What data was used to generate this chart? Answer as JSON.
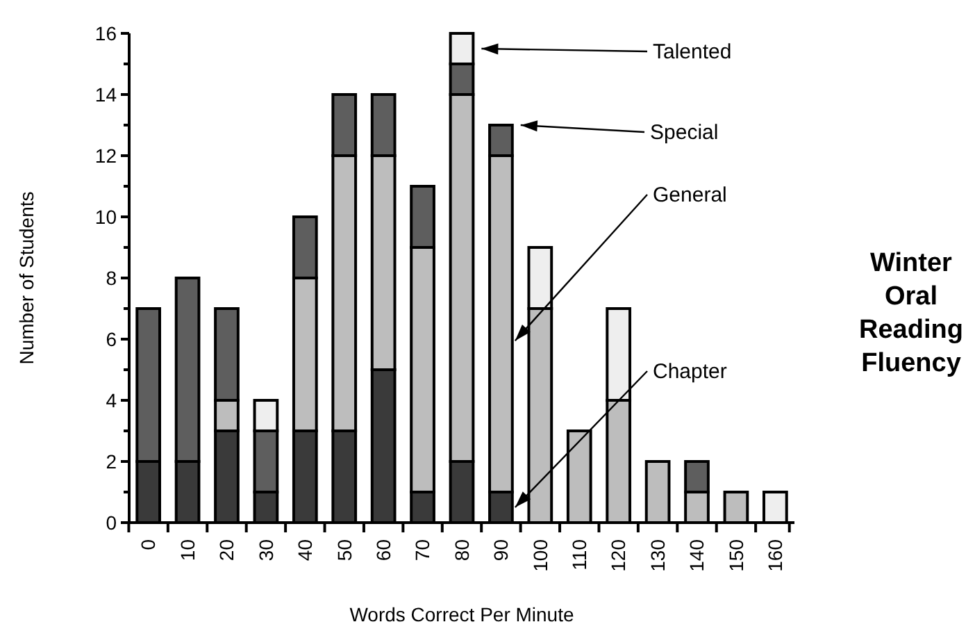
{
  "chart_data": {
    "type": "bar",
    "title": "Winter Oral Reading Fluency",
    "xlabel": "Words Correct Per Minute",
    "ylabel": "Number of Students",
    "stacked": true,
    "categories": [
      "0",
      "10",
      "20",
      "30",
      "40",
      "50",
      "60",
      "70",
      "80",
      "90",
      "100",
      "110",
      "120",
      "130",
      "140",
      "150",
      "160"
    ],
    "series": [
      {
        "name": "Chapter",
        "color": "#3a3a3a",
        "values": [
          2,
          2,
          3,
          1,
          3,
          3,
          5,
          1,
          2,
          1,
          0,
          0,
          0,
          0,
          0,
          0,
          0
        ]
      },
      {
        "name": "General",
        "color": "#bdbdbd",
        "values": [
          0,
          0,
          1,
          0,
          5,
          9,
          7,
          8,
          12,
          11,
          7,
          3,
          4,
          2,
          1,
          1,
          0
        ]
      },
      {
        "name": "Special",
        "color": "#5e5e5e",
        "values": [
          5,
          6,
          3,
          2,
          2,
          2,
          2,
          2,
          1,
          1,
          0,
          0,
          0,
          0,
          1,
          0,
          0
        ]
      },
      {
        "name": "Talented",
        "color": "#eeeeee",
        "values": [
          0,
          0,
          0,
          1,
          0,
          0,
          0,
          0,
          1,
          0,
          2,
          0,
          3,
          0,
          0,
          0,
          1
        ]
      }
    ],
    "ylim": [
      0,
      16
    ],
    "yticks": [
      0,
      {
        "value": 1,
        "label": null
      },
      2,
      {
        "value": 3,
        "label": null
      },
      4,
      {
        "value": 5,
        "label": null
      },
      6,
      {
        "value": 7,
        "label": null
      },
      8,
      {
        "value": 9,
        "label": null
      },
      10,
      {
        "value": 11,
        "label": null
      },
      12,
      {
        "value": 13,
        "label": null
      },
      14,
      {
        "value": 15,
        "label": null
      },
      16
    ],
    "grid": false,
    "legend": false
  }
}
